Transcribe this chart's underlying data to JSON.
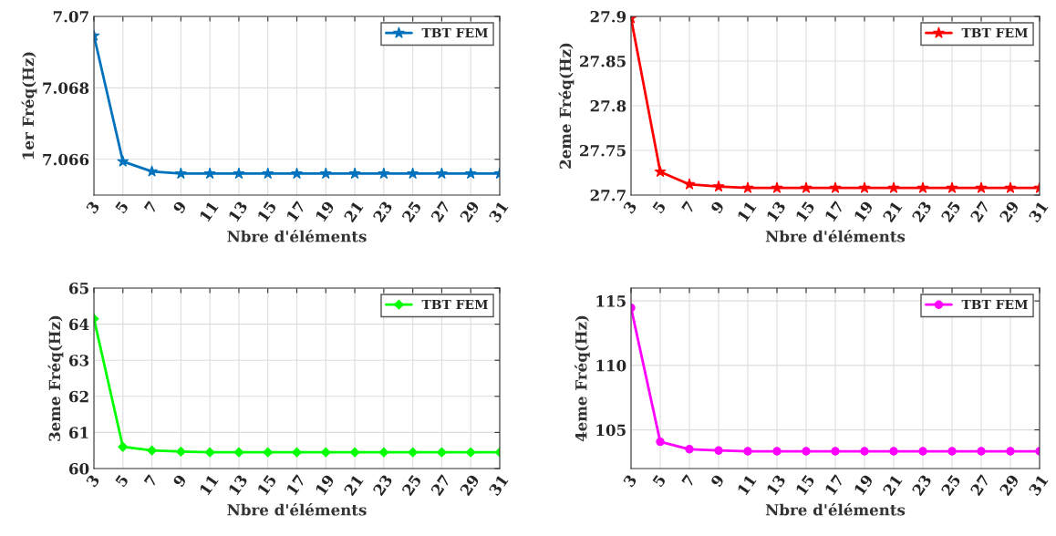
{
  "chart_data": [
    {
      "type": "line",
      "xlabel": "Nbre d'éléments",
      "ylabel": "1er Fréq(Hz)",
      "x": [
        3,
        5,
        7,
        9,
        11,
        13,
        15,
        17,
        19,
        21,
        23,
        25,
        27,
        29,
        31
      ],
      "xlim": [
        3,
        31
      ],
      "xticks": [
        3,
        5,
        7,
        9,
        11,
        13,
        15,
        17,
        19,
        21,
        23,
        25,
        27,
        29,
        31
      ],
      "ylim": [
        7.065,
        7.07
      ],
      "yticks": [
        {
          "value": 7.066,
          "label": "7.066"
        },
        {
          "value": 7.068,
          "label": "7.068"
        },
        {
          "value": 7.07,
          "label": "7.07"
        }
      ],
      "grid": true,
      "legend": "top right",
      "marker": "star",
      "series": [
        {
          "name": "TBT FEM",
          "color": "#0072bd",
          "values": [
            7.06946,
            7.06594,
            7.06566,
            7.0656,
            7.0656,
            7.0656,
            7.0656,
            7.0656,
            7.0656,
            7.0656,
            7.0656,
            7.0656,
            7.0656,
            7.0656,
            7.0656
          ]
        }
      ]
    },
    {
      "type": "line",
      "xlabel": "Nbre d'éléments",
      "ylabel": "2eme Fréq(Hz)",
      "x": [
        3,
        5,
        7,
        9,
        11,
        13,
        15,
        17,
        19,
        21,
        23,
        25,
        27,
        29,
        31
      ],
      "xlim": [
        3,
        31
      ],
      "xticks": [
        3,
        5,
        7,
        9,
        11,
        13,
        15,
        17,
        19,
        21,
        23,
        25,
        27,
        29,
        31
      ],
      "ylim": [
        27.7,
        27.9
      ],
      "yticks": [
        {
          "value": 27.7,
          "label": "27.7"
        },
        {
          "value": 27.75,
          "label": "27.75"
        },
        {
          "value": 27.8,
          "label": "27.8"
        },
        {
          "value": 27.85,
          "label": "27.85"
        },
        {
          "value": 27.9,
          "label": "27.9"
        }
      ],
      "grid": true,
      "legend": "top right",
      "marker": "star",
      "series": [
        {
          "name": "TBT FEM",
          "color": "#ff0000",
          "values": [
            27.898,
            27.726,
            27.712,
            27.7095,
            27.708,
            27.708,
            27.708,
            27.708,
            27.708,
            27.708,
            27.708,
            27.708,
            27.708,
            27.708,
            27.708
          ]
        }
      ]
    },
    {
      "type": "line",
      "xlabel": "Nbre d'éléments",
      "ylabel": "3eme Fréq(Hz)",
      "x": [
        3,
        5,
        7,
        9,
        11,
        13,
        15,
        17,
        19,
        21,
        23,
        25,
        27,
        29,
        31
      ],
      "xlim": [
        3,
        31
      ],
      "xticks": [
        3,
        5,
        7,
        9,
        11,
        13,
        15,
        17,
        19,
        21,
        23,
        25,
        27,
        29,
        31
      ],
      "ylim": [
        60,
        65
      ],
      "yticks": [
        60,
        61,
        62,
        63,
        64,
        65
      ],
      "grid": true,
      "legend": "top right",
      "marker": "diamond",
      "series": [
        {
          "name": "TBT FEM",
          "color": "#00ff00",
          "values": [
            64.15,
            60.6,
            60.5,
            60.47,
            60.45,
            60.45,
            60.45,
            60.45,
            60.45,
            60.45,
            60.45,
            60.45,
            60.45,
            60.45,
            60.45
          ]
        }
      ]
    },
    {
      "type": "line",
      "xlabel": "Nbre d'éléments",
      "ylabel": "4eme Fréq(Hz)",
      "x": [
        3,
        5,
        7,
        9,
        11,
        13,
        15,
        17,
        19,
        21,
        23,
        25,
        27,
        29,
        31
      ],
      "xlim": [
        3,
        31
      ],
      "xticks": [
        3,
        5,
        7,
        9,
        11,
        13,
        15,
        17,
        19,
        21,
        23,
        25,
        27,
        29,
        31
      ],
      "ylim": [
        102,
        116
      ],
      "yticks": [
        105,
        110,
        115
      ],
      "grid": true,
      "legend": "top right",
      "marker": "circle",
      "series": [
        {
          "name": "TBT FEM",
          "color": "#ff00ff",
          "values": [
            114.47,
            104.08,
            103.5,
            103.4,
            103.34,
            103.34,
            103.34,
            103.34,
            103.34,
            103.34,
            103.34,
            103.34,
            103.34,
            103.34,
            103.34
          ]
        }
      ]
    }
  ]
}
